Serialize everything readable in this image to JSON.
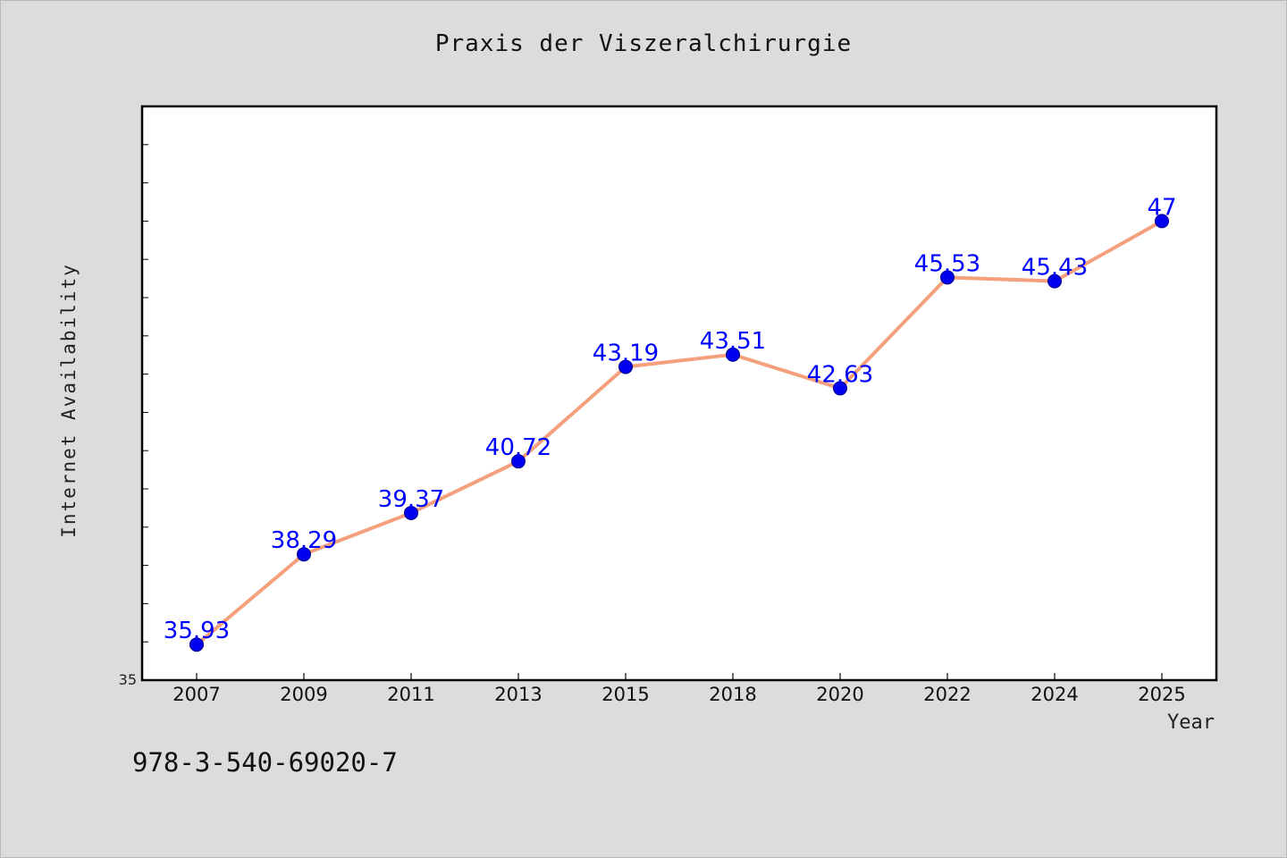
{
  "chart_data": {
    "type": "line",
    "title": "Praxis der Viszeralchirurgie",
    "xlabel": "Year",
    "ylabel": "Internet Availability",
    "categories": [
      "2007",
      "2009",
      "2011",
      "2013",
      "2015",
      "2018",
      "2020",
      "2022",
      "2024",
      "2025"
    ],
    "series": [
      {
        "values": [
          35.93,
          38.29,
          39.37,
          40.72,
          43.19,
          43.51,
          42.63,
          45.53,
          45.43,
          47
        ],
        "labels": [
          "35.93",
          "38.29",
          "39.37",
          "40.72",
          "43.19",
          "43.51",
          "42.63",
          "45.53",
          "45.43",
          "47"
        ]
      }
    ],
    "ylim": [
      35,
      50
    ],
    "y_tick_labels": [
      "35"
    ],
    "grid": false,
    "legend": "none",
    "colors": {
      "line": "#f4a07c",
      "marker": "#0000ee",
      "data_label": "#0000ff",
      "plot_background": "#ffffff",
      "page_background": "#dcdcdc"
    }
  },
  "footer": {
    "isbn": "978-3-540-69020-7"
  }
}
